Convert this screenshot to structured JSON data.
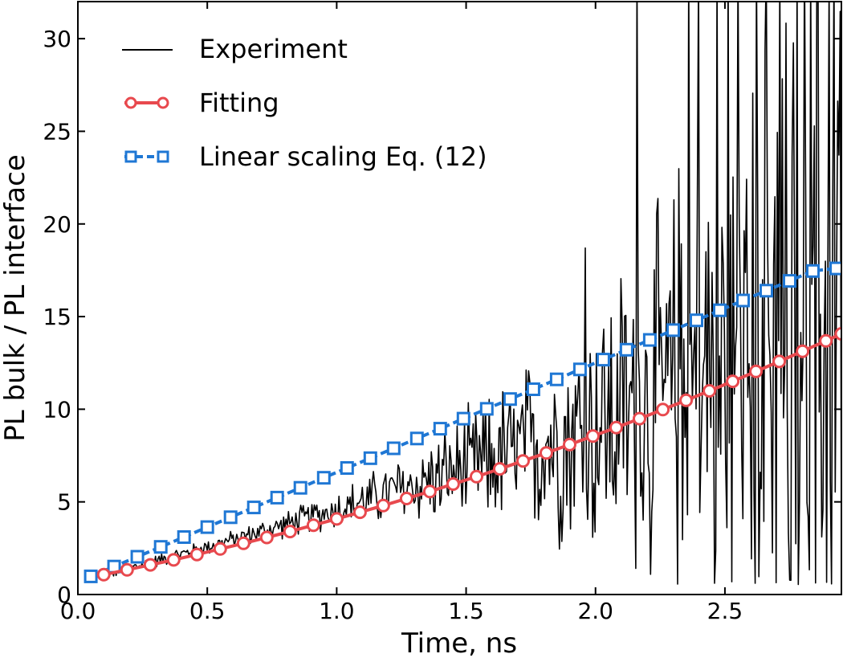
{
  "chart_data": {
    "type": "line",
    "title": "",
    "xlabel": "Time, ns",
    "ylabel": "PL bulk / PL interface",
    "xlim": [
      0.0,
      2.95
    ],
    "ylim": [
      0,
      32
    ],
    "xticks": [
      0.0,
      0.5,
      1.0,
      1.5,
      2.0,
      2.5
    ],
    "xtick_labels": [
      "0.0",
      "0.5",
      "1.0",
      "1.5",
      "2.0",
      "2.5"
    ],
    "yticks": [
      0,
      5,
      10,
      15,
      20,
      25,
      30
    ],
    "ytick_labels": [
      "0",
      "5",
      "10",
      "15",
      "20",
      "25",
      "30"
    ],
    "grid": false,
    "legend_position": "top-left",
    "series": [
      {
        "name": "Experiment",
        "style": "solid line, no markers",
        "color": "#000000",
        "x_range": [
          0.1,
          2.95
        ],
        "points": 600,
        "trend": "noisy curve roughly following Fitting; noise grows from ~0.3 at 0.1 ns to >15 beyond 2.2 ns, with spikes exceeding the top of the axis (32) after ~2.15 ns",
        "spike_x": [
          1.96,
          2.16,
          2.36,
          2.4,
          2.47,
          2.51,
          2.55,
          2.62,
          2.66,
          2.71,
          2.78,
          2.83,
          2.86,
          2.92
        ]
      },
      {
        "name": "Fitting",
        "style": "solid line with open circle markers",
        "color": "#e8494e",
        "x": [
          0.1,
          0.19,
          0.28,
          0.37,
          0.46,
          0.55,
          0.64,
          0.73,
          0.82,
          0.91,
          1.0,
          1.09,
          1.18,
          1.27,
          1.36,
          1.45,
          1.54,
          1.63,
          1.72,
          1.81,
          1.9,
          1.99,
          2.08,
          2.17,
          2.26,
          2.35,
          2.44,
          2.53,
          2.62,
          2.71,
          2.8,
          2.89,
          2.95
        ],
        "y": [
          1.07,
          1.33,
          1.6,
          1.87,
          2.16,
          2.46,
          2.76,
          3.08,
          3.4,
          3.74,
          4.08,
          4.44,
          4.8,
          5.18,
          5.56,
          5.96,
          6.36,
          6.78,
          7.21,
          7.64,
          8.09,
          8.55,
          9.01,
          9.49,
          9.98,
          10.48,
          10.99,
          11.51,
          12.04,
          12.58,
          13.13,
          13.69,
          14.07
        ]
      },
      {
        "name": "Linear scaling Eq. (12)",
        "style": "dashed line with open square markers",
        "color": "#1f77d4",
        "x": [
          0.05,
          0.14,
          0.23,
          0.32,
          0.41,
          0.5,
          0.59,
          0.68,
          0.77,
          0.86,
          0.95,
          1.04,
          1.13,
          1.22,
          1.31,
          1.4,
          1.49,
          1.58,
          1.67,
          1.76,
          1.85,
          1.94,
          2.03,
          2.12,
          2.21,
          2.3,
          2.39,
          2.48,
          2.57,
          2.66,
          2.75,
          2.84,
          2.93
        ],
        "y": [
          0.98,
          1.51,
          2.04,
          2.57,
          3.1,
          3.64,
          4.17,
          4.7,
          5.23,
          5.76,
          6.3,
          6.83,
          7.36,
          7.89,
          8.42,
          8.95,
          9.49,
          10.02,
          10.55,
          11.08,
          11.61,
          12.15,
          12.68,
          13.21,
          13.74,
          14.27,
          14.8,
          15.34,
          15.87,
          16.4,
          16.93,
          17.46,
          17.6
        ]
      }
    ]
  }
}
